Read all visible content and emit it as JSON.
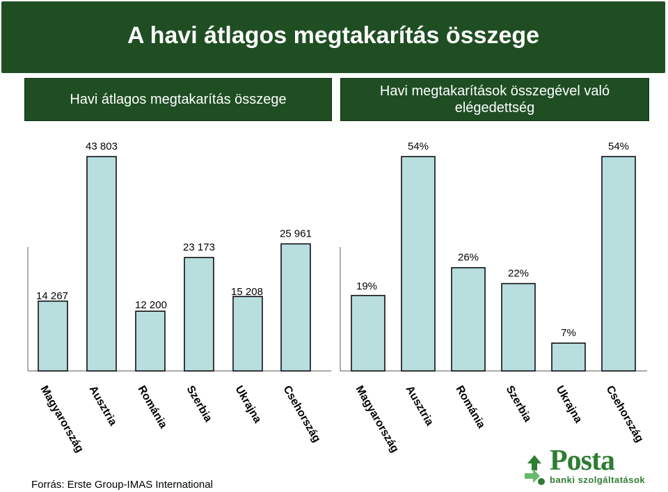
{
  "title": "A havi átlagos megtakarítás összege",
  "panels": {
    "left_header": "Havi átlagos megtakarítás összege",
    "right_header": "Havi megtakarítások összegével való\nelégedettség"
  },
  "source": "Forrás: Erste Group-IMAS International",
  "logo": {
    "word": "Posta",
    "subtitle": "banki szolgáltatások",
    "icon": "recycle-arrows-icon"
  },
  "colors": {
    "header_bg": "#1f4e23",
    "bar_fill": "#b8dede",
    "logo_green": "#2e7d32"
  },
  "chart_data": [
    {
      "type": "bar",
      "title": "Havi átlagos megtakarítás összege",
      "categories": [
        "Magyarország",
        "Ausztria",
        "Románia",
        "Szerbia",
        "Ukrajna",
        "Csehország"
      ],
      "values": [
        14267,
        43803,
        12200,
        23173,
        15208,
        25961
      ],
      "labels": [
        "14 267",
        "43 803",
        "12 200",
        "23 173",
        "15 208",
        "25 961"
      ],
      "ylim": [
        0,
        46000
      ]
    },
    {
      "type": "bar",
      "title": "Havi megtakarítások összegével való elégedettség",
      "categories": [
        "Magyarország",
        "Ausztria",
        "Románia",
        "Szerbia",
        "Ukrajna",
        "Csehország"
      ],
      "values": [
        19,
        54,
        26,
        22,
        7,
        54
      ],
      "labels": [
        "19%",
        "54%",
        "26%",
        "22%",
        "7%",
        "54%"
      ],
      "unit": "%",
      "ylim": [
        0,
        57
      ]
    }
  ]
}
